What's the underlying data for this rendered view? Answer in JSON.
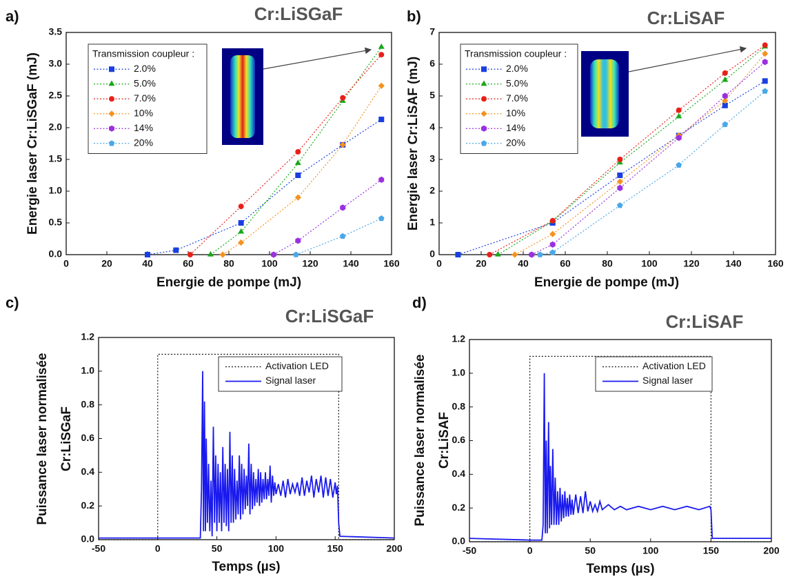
{
  "chart_data": [
    {
      "type": "line",
      "panel": "a)",
      "title": "Cr:LiSGaF",
      "xlabel": "Energie de pompe (mJ)",
      "ylabel": "Energie laser Cr:LiSGaF (mJ)",
      "legend_title": "Transmission coupleur :",
      "xlim": [
        0,
        160
      ],
      "xticks": [
        0,
        20,
        40,
        60,
        80,
        100,
        120,
        140,
        160
      ],
      "ylim": [
        0,
        3.5
      ],
      "yticks": [
        {
          "value": 0,
          "label": "0.0"
        },
        0.5,
        {
          "value": 1,
          "label": "1.0"
        },
        1.5,
        {
          "value": 2,
          "label": "2.0"
        },
        2.5,
        {
          "value": 3,
          "label": "3.0"
        },
        3.5
      ],
      "series": [
        {
          "name": "2.0%",
          "color": "#1a3fe0",
          "marker": "square",
          "linestyle": "dotted",
          "x": [
            40,
            54,
            86,
            114,
            136,
            155
          ],
          "values": [
            0.0,
            0.07,
            0.5,
            1.25,
            1.73,
            2.13
          ]
        },
        {
          "name": "5.0%",
          "color": "#1aa81a",
          "marker": "triangle",
          "linestyle": "dotted",
          "x": [
            71,
            86,
            114,
            136,
            155
          ],
          "values": [
            0.0,
            0.36,
            1.44,
            2.42,
            3.27
          ]
        },
        {
          "name": "7.0%",
          "color": "#e8201a",
          "marker": "circle",
          "linestyle": "dotted",
          "x": [
            61,
            86,
            114,
            136,
            155
          ],
          "values": [
            0.0,
            0.76,
            1.62,
            2.47,
            3.15
          ]
        },
        {
          "name": "10%",
          "color": "#f5921e",
          "marker": "diamond",
          "linestyle": "dotted",
          "x": [
            77,
            86,
            114,
            136,
            155
          ],
          "values": [
            0.0,
            0.19,
            0.9,
            1.73,
            2.66
          ]
        },
        {
          "name": "14%",
          "color": "#9b30e0",
          "marker": "hexagon",
          "linestyle": "dotted",
          "x": [
            102,
            114,
            136,
            155
          ],
          "values": [
            0.0,
            0.22,
            0.74,
            1.18
          ]
        },
        {
          "name": "20%",
          "color": "#4aa8e8",
          "marker": "pentagon",
          "linestyle": "dotted",
          "x": [
            113,
            136,
            155
          ],
          "values": [
            0.0,
            0.29,
            0.57
          ]
        }
      ]
    },
    {
      "type": "line",
      "panel": "b)",
      "title": "Cr:LiSAF",
      "xlabel": "Energie de pompe (mJ)",
      "ylabel": "Energie laser Cr:LiSAF (mJ)",
      "legend_title": "Transmission coupleur :",
      "xlim": [
        0,
        160
      ],
      "xticks": [
        0,
        20,
        40,
        60,
        80,
        100,
        120,
        140,
        160
      ],
      "ylim": [
        0,
        7
      ],
      "yticks": [
        0,
        1,
        2,
        3,
        4,
        5,
        6,
        7
      ],
      "series": [
        {
          "name": "2.0%",
          "color": "#1a3fe0",
          "marker": "square",
          "linestyle": "dotted",
          "x": [
            9,
            54,
            86,
            114,
            136,
            155
          ],
          "values": [
            0,
            1.0,
            2.5,
            3.75,
            4.7,
            5.47
          ]
        },
        {
          "name": "5.0%",
          "color": "#1aa81a",
          "marker": "triangle",
          "linestyle": "dotted",
          "x": [
            28,
            54,
            86,
            114,
            136,
            155
          ],
          "values": [
            0,
            1.05,
            2.9,
            4.35,
            5.5,
            6.55
          ]
        },
        {
          "name": "7.0%",
          "color": "#e8201a",
          "marker": "circle",
          "linestyle": "dotted",
          "x": [
            24,
            54,
            86,
            114,
            136,
            155
          ],
          "values": [
            0,
            1.07,
            3.0,
            4.55,
            5.72,
            6.6
          ]
        },
        {
          "name": "10%",
          "color": "#f5921e",
          "marker": "diamond",
          "linestyle": "dotted",
          "x": [
            36,
            54,
            86,
            114,
            136,
            155
          ],
          "values": [
            0,
            0.65,
            2.3,
            3.75,
            4.85,
            6.33
          ]
        },
        {
          "name": "14%",
          "color": "#9b30e0",
          "marker": "hexagon",
          "linestyle": "dotted",
          "x": [
            44,
            54,
            86,
            114,
            136,
            155
          ],
          "values": [
            0,
            0.32,
            2.1,
            3.68,
            5.0,
            6.07
          ]
        },
        {
          "name": "20%",
          "color": "#4aa8e8",
          "marker": "pentagon",
          "linestyle": "dotted",
          "x": [
            48,
            54,
            86,
            114,
            136,
            155
          ],
          "values": [
            0,
            0.07,
            1.55,
            2.82,
            4.1,
            5.15
          ]
        }
      ]
    },
    {
      "type": "line",
      "panel": "c)",
      "title": "Cr:LiSGaF",
      "xlabel": "Temps (µs)",
      "ylabel": "Puissance laser normalisée",
      "ylabel2": "Cr:LiSGaF",
      "xlim": [
        -50,
        200
      ],
      "xticks": [
        -50,
        0,
        50,
        100,
        150,
        200
      ],
      "ylim": [
        0,
        1.2
      ],
      "yticks": [
        {
          "value": 0,
          "label": "0.0"
        },
        0.2,
        0.4,
        0.6,
        0.8,
        {
          "value": 1,
          "label": "1.0"
        },
        1.2
      ],
      "series": [
        {
          "name": "Activation LED",
          "color": "#111111",
          "linestyle": "dotted",
          "x": [
            -50,
            0,
            0,
            153,
            153,
            200
          ],
          "values": [
            0,
            0,
            1.1,
            1.1,
            0,
            0
          ]
        },
        {
          "name": "Signal laser",
          "color": "#1a1aee",
          "linestyle": "solid",
          "x": [
            -50,
            0,
            36,
            37,
            38,
            38.7,
            39.5,
            40.3,
            41,
            42,
            43,
            44,
            45,
            46,
            47,
            48,
            49,
            50,
            51,
            52,
            53,
            54,
            55,
            56,
            57,
            58,
            59,
            60,
            61,
            62,
            63,
            64,
            65,
            66,
            67,
            68,
            69,
            70,
            71,
            72,
            73,
            74,
            75,
            76,
            77,
            78,
            79,
            80,
            81,
            82,
            83,
            84,
            85,
            86,
            87,
            88,
            89,
            90,
            91,
            92,
            93,
            94,
            95,
            96,
            97,
            98,
            99,
            100,
            102,
            104,
            106,
            108,
            110,
            112,
            114,
            116,
            118,
            120,
            122,
            124,
            126,
            128,
            130,
            132,
            134,
            136,
            138,
            140,
            142,
            144,
            146,
            148,
            150,
            151,
            152,
            153,
            154,
            200
          ],
          "values": [
            0.01,
            0.01,
            0.01,
            0.3,
            1.0,
            0.05,
            0.82,
            0.05,
            0.6,
            0.1,
            0.45,
            0.05,
            0.35,
            0.02,
            0.67,
            0.1,
            0.5,
            0.05,
            0.45,
            0.1,
            0.4,
            0.05,
            0.55,
            0.1,
            0.45,
            0.08,
            0.42,
            0.05,
            0.64,
            0.1,
            0.5,
            0.1,
            0.42,
            0.12,
            0.35,
            0.15,
            0.5,
            0.12,
            0.45,
            0.15,
            0.42,
            0.18,
            0.38,
            0.2,
            0.57,
            0.15,
            0.45,
            0.18,
            0.4,
            0.2,
            0.36,
            0.22,
            0.42,
            0.2,
            0.4,
            0.22,
            0.36,
            0.24,
            0.4,
            0.24,
            0.36,
            0.26,
            0.44,
            0.22,
            0.38,
            0.26,
            0.34,
            0.27,
            0.33,
            0.26,
            0.35,
            0.25,
            0.36,
            0.27,
            0.33,
            0.28,
            0.34,
            0.26,
            0.37,
            0.26,
            0.35,
            0.28,
            0.38,
            0.25,
            0.36,
            0.28,
            0.38,
            0.25,
            0.37,
            0.26,
            0.36,
            0.25,
            0.34,
            0.27,
            0.32,
            0.1,
            0.02,
            0.01
          ]
        }
      ]
    },
    {
      "type": "line",
      "panel": "d)",
      "title": "Cr:LiSAF",
      "xlabel": "Temps (µs)",
      "ylabel": "Puissance laser normalisée",
      "ylabel2": "Cr:LiSAF",
      "xlim": [
        -50,
        200
      ],
      "xticks": [
        -50,
        0,
        50,
        100,
        150,
        200
      ],
      "ylim": [
        0,
        1.2
      ],
      "yticks": [
        {
          "value": 0,
          "label": "0.0"
        },
        0.2,
        0.4,
        0.6,
        0.8,
        {
          "value": 1,
          "label": "1.0"
        },
        1.2
      ],
      "series": [
        {
          "name": "Activation LED",
          "color": "#111111",
          "linestyle": "dotted",
          "x": [
            -50,
            0,
            0,
            150,
            150,
            200
          ],
          "values": [
            0,
            0,
            1.1,
            1.1,
            0,
            0
          ]
        },
        {
          "name": "Signal laser",
          "color": "#1a1aee",
          "linestyle": "solid",
          "x": [
            -50,
            0,
            10,
            11,
            12,
            12.8,
            13.6,
            14.4,
            15.5,
            16.3,
            17,
            18,
            19,
            20,
            21,
            22,
            23,
            24,
            25,
            26,
            27,
            28,
            29,
            30,
            31,
            32,
            33,
            34,
            35,
            36,
            38,
            40,
            42,
            44,
            46,
            48,
            50,
            52,
            54,
            56,
            58,
            60,
            65,
            70,
            75,
            80,
            90,
            100,
            110,
            120,
            130,
            140,
            149,
            150,
            151,
            200
          ],
          "values": [
            0.02,
            0.01,
            0.01,
            0.1,
            1.0,
            0.05,
            0.6,
            0.05,
            0.71,
            0.08,
            0.45,
            0.1,
            0.55,
            0.1,
            0.38,
            0.1,
            0.3,
            0.1,
            0.32,
            0.12,
            0.28,
            0.14,
            0.3,
            0.15,
            0.26,
            0.15,
            0.28,
            0.16,
            0.25,
            0.16,
            0.28,
            0.17,
            0.27,
            0.17,
            0.3,
            0.18,
            0.24,
            0.18,
            0.22,
            0.18,
            0.24,
            0.19,
            0.22,
            0.19,
            0.21,
            0.19,
            0.21,
            0.19,
            0.21,
            0.19,
            0.21,
            0.19,
            0.21,
            0.19,
            0.02,
            0.02
          ]
        }
      ]
    }
  ]
}
